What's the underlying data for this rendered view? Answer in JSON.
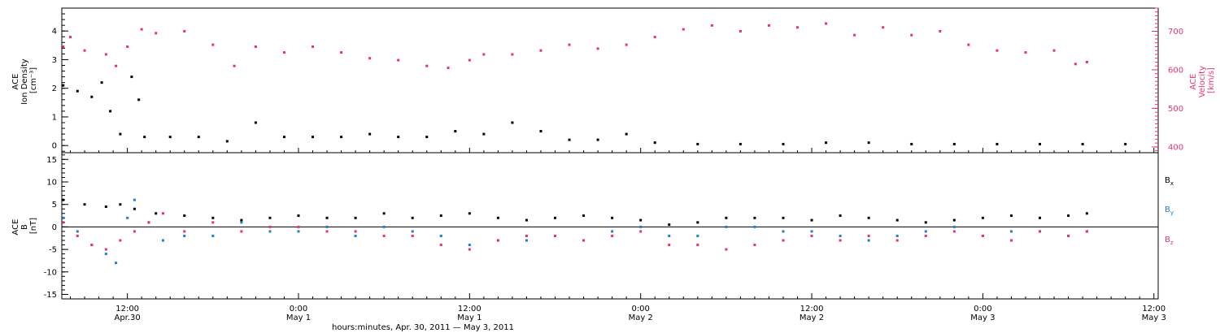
{
  "xaxis": {
    "title": "hours:minutes, Apr. 30, 2011 — May  3, 2011",
    "ticks": [
      {
        "time": "12:00",
        "date": "Apr.30",
        "hour": 12
      },
      {
        "time": "0:00",
        "date": "May 1",
        "hour": 24
      },
      {
        "time": "12:00",
        "date": "May 1",
        "hour": 36
      },
      {
        "time": "0:00",
        "date": "May 2",
        "hour": 48
      },
      {
        "time": "12:00",
        "date": "May 2",
        "hour": 60
      },
      {
        "time": "0:00",
        "date": "May 3",
        "hour": 72
      },
      {
        "time": "12:00",
        "date": "May 3",
        "hour": 84
      }
    ]
  },
  "chart_data": [
    {
      "type": "scatter",
      "panel": "top",
      "xrange_hours_since_apr30_0000": [
        7.4,
        84.3
      ],
      "left_axis": {
        "label_lines": [
          "ACE",
          "Ion Density",
          "[cm⁻³]"
        ],
        "ylim": [
          -0.25,
          4.8
        ],
        "ticks": [
          0,
          1,
          2,
          3,
          4
        ],
        "color": "#000000"
      },
      "right_axis": {
        "label_lines": [
          "ACE",
          "Velocity",
          "[km/s]"
        ],
        "ylim": [
          385,
          760
        ],
        "ticks": [
          400,
          500,
          600,
          700
        ],
        "color": "#e8336a"
      },
      "series": [
        {
          "name": "",
          "axis": "left",
          "color": "#000000",
          "points_hour_value": [
            [
              7.5,
              2.1
            ],
            [
              8.5,
              1.9
            ],
            [
              9.5,
              1.7
            ],
            [
              10.2,
              2.2
            ],
            [
              10.8,
              1.2
            ],
            [
              11.5,
              0.4
            ],
            [
              12.3,
              2.4
            ],
            [
              12.8,
              1.6
            ],
            [
              13.2,
              0.3
            ],
            [
              15,
              0.3
            ],
            [
              17,
              0.3
            ],
            [
              19,
              0.15
            ],
            [
              21,
              0.8
            ],
            [
              23,
              0.3
            ],
            [
              25,
              0.3
            ],
            [
              27,
              0.3
            ],
            [
              29,
              0.4
            ],
            [
              31,
              0.3
            ],
            [
              33,
              0.3
            ],
            [
              35,
              0.5
            ],
            [
              37,
              0.4
            ],
            [
              39,
              0.8
            ],
            [
              41,
              0.5
            ],
            [
              43,
              0.2
            ],
            [
              45,
              0.2
            ],
            [
              47,
              0.4
            ],
            [
              49,
              0.1
            ],
            [
              52,
              0.05
            ],
            [
              55,
              0.05
            ],
            [
              58,
              0.05
            ],
            [
              61,
              0.1
            ],
            [
              64,
              0.1
            ],
            [
              67,
              0.05
            ],
            [
              70,
              0.05
            ],
            [
              73,
              0.05
            ],
            [
              76,
              0.05
            ],
            [
              79,
              0.05
            ],
            [
              82,
              0.05
            ]
          ]
        },
        {
          "name": "",
          "axis": "right",
          "color": "#e8336a",
          "points_hour_value": [
            [
              7.5,
              660
            ],
            [
              8,
              685
            ],
            [
              9,
              650
            ],
            [
              10.5,
              640
            ],
            [
              11.2,
              610
            ],
            [
              12,
              660
            ],
            [
              13,
              705
            ],
            [
              14,
              695
            ],
            [
              16,
              700
            ],
            [
              18,
              665
            ],
            [
              19.5,
              610
            ],
            [
              21,
              660
            ],
            [
              23,
              645
            ],
            [
              25,
              660
            ],
            [
              27,
              645
            ],
            [
              29,
              630
            ],
            [
              31,
              625
            ],
            [
              33,
              610
            ],
            [
              34.5,
              605
            ],
            [
              36,
              625
            ],
            [
              37,
              640
            ],
            [
              39,
              640
            ],
            [
              41,
              650
            ],
            [
              43,
              665
            ],
            [
              45,
              655
            ],
            [
              47,
              665
            ],
            [
              49,
              685
            ],
            [
              51,
              705
            ],
            [
              53,
              715
            ],
            [
              55,
              700
            ],
            [
              57,
              715
            ],
            [
              59,
              710
            ],
            [
              61,
              720
            ],
            [
              63,
              690
            ],
            [
              65,
              710
            ],
            [
              67,
              690
            ],
            [
              69,
              700
            ],
            [
              71,
              665
            ],
            [
              73,
              650
            ],
            [
              75,
              645
            ],
            [
              77,
              650
            ],
            [
              78.5,
              615
            ],
            [
              79.3,
              620
            ]
          ]
        }
      ]
    },
    {
      "type": "scatter",
      "panel": "bottom",
      "xrange_hours_since_apr30_0000": [
        7.4,
        84.3
      ],
      "left_axis": {
        "label_lines": [
          "ACE",
          "B",
          "[nT]"
        ],
        "ylim": [
          -16,
          16.5
        ],
        "ticks": [
          -15,
          -10,
          -5,
          0,
          5,
          10,
          15
        ]
      },
      "zero_line": 0,
      "series": [
        {
          "name": "B",
          "subscript": "x",
          "color": "#000000",
          "points_hour_value": [
            [
              7.5,
              6
            ],
            [
              9,
              5
            ],
            [
              10.5,
              4.5
            ],
            [
              11.5,
              5
            ],
            [
              12.5,
              4
            ],
            [
              14,
              3
            ],
            [
              16,
              2.5
            ],
            [
              18,
              2
            ],
            [
              20,
              1.5
            ],
            [
              22,
              2
            ],
            [
              24,
              2.5
            ],
            [
              26,
              2
            ],
            [
              28,
              2
            ],
            [
              30,
              3
            ],
            [
              32,
              2
            ],
            [
              34,
              2.5
            ],
            [
              36,
              3
            ],
            [
              38,
              2
            ],
            [
              40,
              1.5
            ],
            [
              42,
              2
            ],
            [
              44,
              2.5
            ],
            [
              46,
              2
            ],
            [
              48,
              1.5
            ],
            [
              50,
              0.5
            ],
            [
              52,
              1
            ],
            [
              54,
              2
            ],
            [
              56,
              2
            ],
            [
              58,
              2
            ],
            [
              60,
              1.5
            ],
            [
              62,
              2.5
            ],
            [
              64,
              2
            ],
            [
              66,
              1.5
            ],
            [
              68,
              1
            ],
            [
              70,
              1.5
            ],
            [
              72,
              2
            ],
            [
              74,
              2.5
            ],
            [
              76,
              2
            ],
            [
              78,
              2.5
            ],
            [
              79.3,
              3
            ]
          ]
        },
        {
          "name": "B",
          "subscript": "y",
          "color": "#1a7fd4",
          "points_hour_value": [
            [
              7.5,
              2
            ],
            [
              8.5,
              -1
            ],
            [
              9.5,
              -4
            ],
            [
              10.5,
              -6
            ],
            [
              11.2,
              -8
            ],
            [
              12,
              2
            ],
            [
              12.5,
              6
            ],
            [
              13.5,
              1
            ],
            [
              14.5,
              -3
            ],
            [
              16,
              -2
            ],
            [
              18,
              -2
            ],
            [
              20,
              1
            ],
            [
              22,
              -1
            ],
            [
              24,
              -1
            ],
            [
              26,
              0
            ],
            [
              28,
              -2
            ],
            [
              30,
              0
            ],
            [
              32,
              -1
            ],
            [
              34,
              -2
            ],
            [
              36,
              -4
            ],
            [
              38,
              -3
            ],
            [
              40,
              -3
            ],
            [
              42,
              -2
            ],
            [
              44,
              -3
            ],
            [
              46,
              -1
            ],
            [
              48,
              0
            ],
            [
              50,
              -2
            ],
            [
              52,
              -2
            ],
            [
              54,
              0
            ],
            [
              56,
              0
            ],
            [
              58,
              -1
            ],
            [
              60,
              -1
            ],
            [
              62,
              -2
            ],
            [
              64,
              -3
            ],
            [
              66,
              -2
            ],
            [
              68,
              -1
            ],
            [
              70,
              0
            ],
            [
              72,
              -2
            ],
            [
              74,
              -1
            ],
            [
              76,
              -1
            ],
            [
              78,
              -2
            ],
            [
              79.3,
              -1
            ]
          ]
        },
        {
          "name": "B",
          "subscript": "z",
          "color": "#e8336a",
          "points_hour_value": [
            [
              7.5,
              1
            ],
            [
              8.5,
              -2
            ],
            [
              9.5,
              -4
            ],
            [
              10.5,
              -5
            ],
            [
              11.5,
              -3
            ],
            [
              12.5,
              -1
            ],
            [
              13.5,
              1
            ],
            [
              14.5,
              3
            ],
            [
              16,
              -1
            ],
            [
              18,
              1
            ],
            [
              20,
              -1
            ],
            [
              22,
              0
            ],
            [
              24,
              0
            ],
            [
              26,
              -1
            ],
            [
              28,
              -1
            ],
            [
              30,
              -2
            ],
            [
              32,
              -2
            ],
            [
              34,
              -4
            ],
            [
              36,
              -5
            ],
            [
              38,
              -3
            ],
            [
              40,
              -2
            ],
            [
              42,
              -2
            ],
            [
              44,
              -3
            ],
            [
              46,
              -2
            ],
            [
              48,
              -1
            ],
            [
              50,
              -4
            ],
            [
              52,
              -4
            ],
            [
              54,
              -5
            ],
            [
              56,
              -4
            ],
            [
              58,
              -3
            ],
            [
              60,
              -2
            ],
            [
              62,
              -3
            ],
            [
              64,
              -2
            ],
            [
              66,
              -3
            ],
            [
              68,
              -2
            ],
            [
              70,
              -1
            ],
            [
              72,
              -2
            ],
            [
              74,
              -3
            ],
            [
              76,
              -1
            ],
            [
              78,
              -2
            ],
            [
              79.3,
              -1
            ]
          ]
        }
      ]
    }
  ]
}
